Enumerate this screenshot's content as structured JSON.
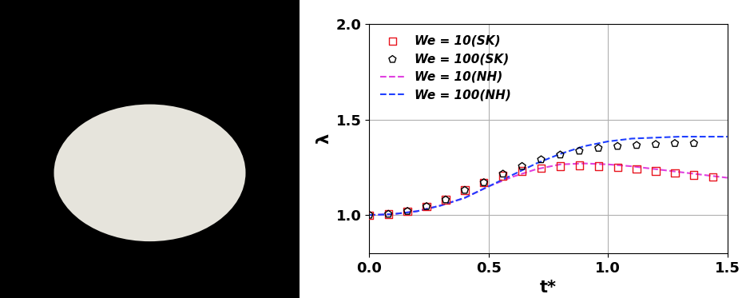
{
  "chart_data": {
    "type": "line",
    "x_label": "t*",
    "y_label": "λ",
    "xlim": [
      0.0,
      1.5
    ],
    "ylim": [
      0.8,
      2.0
    ],
    "xticks": [
      {
        "value": 0.0,
        "label": "0.0"
      },
      {
        "value": 0.5,
        "label": "0.5"
      },
      {
        "value": 1.0,
        "label": "1.0"
      },
      {
        "value": 1.5,
        "label": "1.5"
      }
    ],
    "yticks": [
      {
        "value": 1.0,
        "label": "1.0"
      },
      {
        "value": 1.5,
        "label": "1.5"
      },
      {
        "value": 2.0,
        "label": "2.0"
      }
    ],
    "grid": true,
    "legend": "upper left",
    "series": [
      {
        "name": "We = 10(SK)",
        "type": "scatter",
        "color": "#e8141e",
        "marker": "square",
        "x": [
          0.0,
          0.08,
          0.16,
          0.24,
          0.32,
          0.4,
          0.48,
          0.56,
          0.64,
          0.72,
          0.8,
          0.88,
          0.96,
          1.04,
          1.12,
          1.2,
          1.28,
          1.36,
          1.44
        ],
        "values": [
          1.0,
          1.005,
          1.02,
          1.045,
          1.08,
          1.13,
          1.17,
          1.205,
          1.23,
          1.245,
          1.255,
          1.26,
          1.255,
          1.25,
          1.24,
          1.23,
          1.22,
          1.21,
          1.2
        ]
      },
      {
        "name": "We = 100(SK)",
        "type": "scatter",
        "color": "#000000",
        "marker": "pentagon",
        "x": [
          0.0,
          0.08,
          0.16,
          0.24,
          0.32,
          0.4,
          0.48,
          0.56,
          0.64,
          0.72,
          0.8,
          0.88,
          0.96,
          1.04,
          1.12,
          1.2,
          1.28,
          1.36
        ],
        "values": [
          1.0,
          1.005,
          1.02,
          1.045,
          1.08,
          1.13,
          1.17,
          1.215,
          1.255,
          1.29,
          1.315,
          1.335,
          1.35,
          1.36,
          1.365,
          1.37,
          1.375,
          1.375
        ]
      },
      {
        "name": "We = 10(NH)",
        "type": "line",
        "color": "#e040e0",
        "line_style": "dashed",
        "x": [
          0.0,
          0.1,
          0.2,
          0.3,
          0.4,
          0.5,
          0.6,
          0.7,
          0.8,
          0.9,
          1.0,
          1.1,
          1.2,
          1.3,
          1.4,
          1.5
        ],
        "values": [
          1.0,
          1.005,
          1.02,
          1.05,
          1.09,
          1.15,
          1.2,
          1.24,
          1.265,
          1.27,
          1.265,
          1.255,
          1.24,
          1.225,
          1.21,
          1.195
        ]
      },
      {
        "name": "We = 100(NH)",
        "type": "line",
        "color": "#1f3fff",
        "line_style": "dashed",
        "x": [
          0.0,
          0.1,
          0.2,
          0.3,
          0.4,
          0.5,
          0.6,
          0.7,
          0.8,
          0.9,
          1.0,
          1.1,
          1.2,
          1.3,
          1.4,
          1.5
        ],
        "values": [
          1.0,
          1.005,
          1.02,
          1.05,
          1.09,
          1.15,
          1.21,
          1.27,
          1.32,
          1.36,
          1.385,
          1.4,
          1.405,
          1.41,
          1.41,
          1.41
        ]
      }
    ]
  }
}
